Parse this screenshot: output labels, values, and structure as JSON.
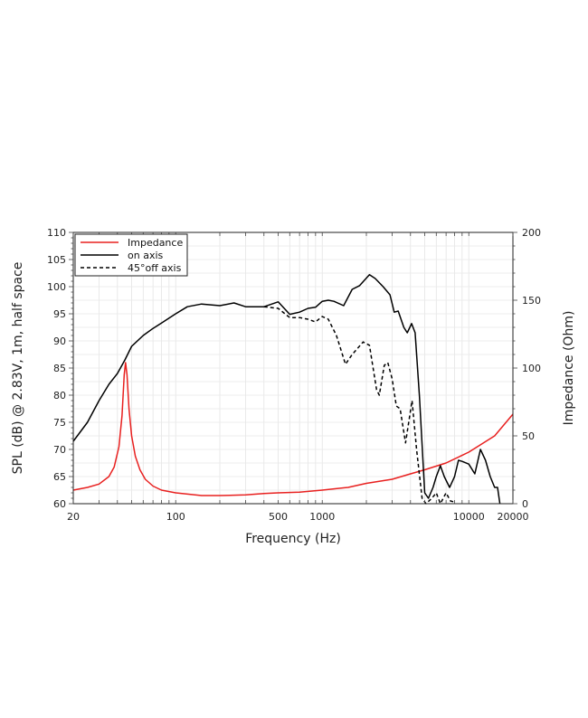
{
  "chart_data": {
    "type": "line",
    "xlabel": "Frequency (Hz)",
    "ylabel": "SPL (dB) @ 2.83V, 1m, half space",
    "y2label": "Impedance (Ohm)",
    "xscale": "log",
    "xlim": [
      20,
      20000
    ],
    "ylim": [
      60,
      110
    ],
    "y2lim": [
      0,
      200
    ],
    "grid": true,
    "legend_position": "top-left",
    "x_ticks": [
      "20",
      "100",
      "500",
      "1000",
      "10000",
      "20000"
    ],
    "x_tick_values": [
      20,
      100,
      500,
      1000,
      10000,
      20000
    ],
    "y_ticks": [
      "60",
      "65",
      "70",
      "75",
      "80",
      "85",
      "90",
      "95",
      "100",
      "105",
      "110"
    ],
    "y2_ticks": [
      "0",
      "50",
      "100",
      "150",
      "200"
    ],
    "series": [
      {
        "name": "Impedance",
        "axis": "right",
        "color": "#e8201f",
        "dash": false,
        "points": [
          [
            20,
            10
          ],
          [
            25,
            12
          ],
          [
            30,
            14.5
          ],
          [
            35,
            20
          ],
          [
            38,
            27
          ],
          [
            41,
            42
          ],
          [
            43,
            65
          ],
          [
            44.5,
            95
          ],
          [
            45.5,
            104
          ],
          [
            46.5,
            95
          ],
          [
            48,
            70
          ],
          [
            50,
            50
          ],
          [
            53,
            35
          ],
          [
            57,
            25
          ],
          [
            62,
            18
          ],
          [
            70,
            13
          ],
          [
            80,
            10
          ],
          [
            100,
            8
          ],
          [
            150,
            6
          ],
          [
            200,
            6
          ],
          [
            300,
            6.5
          ],
          [
            400,
            7.5
          ],
          [
            500,
            8
          ],
          [
            700,
            8.5
          ],
          [
            1000,
            10
          ],
          [
            1500,
            12
          ],
          [
            2000,
            15
          ],
          [
            3000,
            18
          ],
          [
            4000,
            22
          ],
          [
            5000,
            25
          ],
          [
            7000,
            30
          ],
          [
            10000,
            38
          ],
          [
            15000,
            50
          ],
          [
            20000,
            66
          ]
        ]
      },
      {
        "name": "on axis",
        "axis": "left",
        "color": "#000000",
        "dash": false,
        "points": [
          [
            20,
            71.5
          ],
          [
            25,
            75
          ],
          [
            30,
            79
          ],
          [
            35,
            82
          ],
          [
            40,
            84
          ],
          [
            45,
            86.5
          ],
          [
            50,
            89
          ],
          [
            60,
            91
          ],
          [
            70,
            92.3
          ],
          [
            80,
            93.3
          ],
          [
            100,
            95
          ],
          [
            120,
            96.3
          ],
          [
            150,
            96.8
          ],
          [
            200,
            96.5
          ],
          [
            250,
            97
          ],
          [
            300,
            96.3
          ],
          [
            400,
            96.3
          ],
          [
            500,
            97.2
          ],
          [
            600,
            94.9
          ],
          [
            700,
            95.3
          ],
          [
            800,
            96
          ],
          [
            900,
            96.2
          ],
          [
            1000,
            97.3
          ],
          [
            1100,
            97.5
          ],
          [
            1200,
            97.3
          ],
          [
            1400,
            96.5
          ],
          [
            1600,
            99.5
          ],
          [
            1800,
            100.2
          ],
          [
            2100,
            102.2
          ],
          [
            2300,
            101.5
          ],
          [
            2600,
            100
          ],
          [
            2900,
            98.5
          ],
          [
            3100,
            95.3
          ],
          [
            3300,
            95.5
          ],
          [
            3600,
            92.5
          ],
          [
            3800,
            91.5
          ],
          [
            4070,
            93.2
          ],
          [
            4300,
            91.5
          ],
          [
            4600,
            80
          ],
          [
            5000,
            62
          ],
          [
            5300,
            61
          ],
          [
            5700,
            63
          ],
          [
            6000,
            65
          ],
          [
            6400,
            67
          ],
          [
            6800,
            65
          ],
          [
            7400,
            63
          ],
          [
            8000,
            65
          ],
          [
            8500,
            68
          ],
          [
            9000,
            67.8
          ],
          [
            10000,
            67.3
          ],
          [
            11000,
            65.5
          ],
          [
            12000,
            70
          ],
          [
            13000,
            68
          ],
          [
            14000,
            65
          ],
          [
            15000,
            63
          ],
          [
            15700,
            63
          ],
          [
            16300,
            60
          ]
        ]
      },
      {
        "name": "45°off axis",
        "axis": "left",
        "color": "#000000",
        "dash": true,
        "points": [
          [
            400,
            96.3
          ],
          [
            500,
            96
          ],
          [
            600,
            94.3
          ],
          [
            700,
            94.3
          ],
          [
            800,
            94
          ],
          [
            900,
            93.5
          ],
          [
            1000,
            94.5
          ],
          [
            1100,
            94
          ],
          [
            1250,
            91
          ],
          [
            1440,
            85.7
          ],
          [
            1600,
            87.5
          ],
          [
            1900,
            89.8
          ],
          [
            2100,
            89.2
          ],
          [
            2350,
            81
          ],
          [
            2450,
            80
          ],
          [
            2650,
            85.5
          ],
          [
            2800,
            86
          ],
          [
            3000,
            83
          ],
          [
            3200,
            78
          ],
          [
            3400,
            77.5
          ],
          [
            3700,
            71.2
          ],
          [
            4100,
            79
          ],
          [
            4400,
            70
          ],
          [
            4800,
            61
          ],
          [
            5100,
            60
          ],
          [
            5600,
            61
          ],
          [
            6000,
            62
          ],
          [
            6400,
            60
          ],
          [
            7000,
            62
          ],
          [
            7500,
            60.5
          ],
          [
            8000,
            60.3
          ]
        ]
      }
    ]
  }
}
